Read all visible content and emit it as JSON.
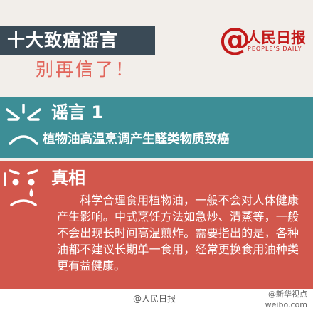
{
  "header": {
    "title": "十大致癌谣言",
    "subtitle": "别再信了！"
  },
  "logo": {
    "name": "人民日报",
    "sub": "PEOPLE'S DAILY"
  },
  "rumor": {
    "label": "谣言 1",
    "text": "植物油高温烹调产生醛类物质致癌"
  },
  "truth": {
    "label": "真相",
    "body": "科学合理食用植物油，一般不会对人体健康产生影响。中式烹饪方法如急炒、清蒸等，一般不会出现长时间高温煎炸。需要指出的是，各种油都不建议长期单一食用，经常更换食用油种类更有益健康。"
  },
  "footer": {
    "credit": "@人民日报",
    "watermark_handle": "@新华视点",
    "watermark_site": "weibo.com"
  },
  "colors": {
    "header_block": "#3a4a56",
    "subtitle": "#e1645a",
    "rumor_band": "#3d8e96",
    "truth_band": "#d2574c",
    "brand_red": "#c21a1a"
  }
}
